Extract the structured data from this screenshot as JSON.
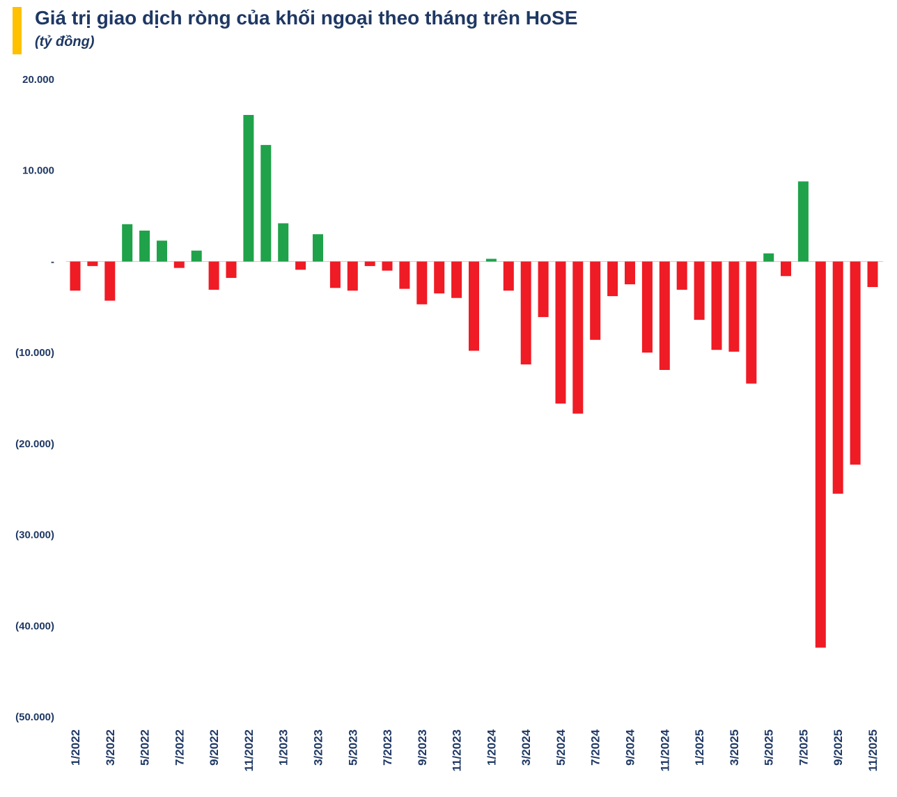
{
  "header": {
    "accent_color": "#FFC000",
    "title_color": "#1F3864"
  },
  "chart_data": {
    "type": "bar",
    "title": "Giá trị giao dịch ròng của khối ngoại theo tháng trên HoSE",
    "unit_label": "(tỷ đồng)",
    "categories": [
      "1/2022",
      "2/2022",
      "3/2022",
      "4/2022",
      "5/2022",
      "6/2022",
      "7/2022",
      "8/2022",
      "9/2022",
      "10/2022",
      "11/2022",
      "12/2022",
      "1/2023",
      "2/2023",
      "3/2023",
      "4/2023",
      "5/2023",
      "6/2023",
      "7/2023",
      "8/2023",
      "9/2023",
      "10/2023",
      "11/2023",
      "12/2023",
      "1/2024",
      "2/2024",
      "3/2024",
      "4/2024",
      "5/2024",
      "6/2024",
      "7/2024",
      "8/2024",
      "9/2024",
      "10/2024",
      "11/2024",
      "12/2024",
      "1/2025",
      "2/2025",
      "3/2025",
      "4/2025",
      "5/2025",
      "6/2025",
      "7/2025",
      "8/2025",
      "9/2025",
      "10/2025",
      "11/2025"
    ],
    "values": [
      -3200,
      -500,
      -4300,
      4100,
      3400,
      2300,
      -700,
      1200,
      -3100,
      -1800,
      16100,
      12800,
      4200,
      -900,
      3000,
      -2900,
      -3200,
      -500,
      -1000,
      -3000,
      -4700,
      -3500,
      -4000,
      -9800,
      300,
      -3200,
      -11300,
      -6100,
      -15600,
      -16700,
      -8600,
      -3800,
      -2500,
      -10000,
      -11900,
      -3100,
      -6400,
      -9700,
      -9900,
      -13400,
      900,
      -1600,
      8800,
      -42400,
      -25500,
      -22300,
      -2800
    ],
    "x_tick_step": 2,
    "y_ticks": [
      {
        "label": "20.000",
        "value": 20000
      },
      {
        "label": "10.000",
        "value": 10000
      },
      {
        "label": "-",
        "value": 0
      },
      {
        "label": "(10.000)",
        "value": -10000
      },
      {
        "label": "(20.000)",
        "value": -20000
      },
      {
        "label": "(30.000)",
        "value": -30000
      },
      {
        "label": "(40.000)",
        "value": -40000
      },
      {
        "label": "(50.000)",
        "value": -50000
      }
    ],
    "ylim": [
      -50000,
      20000
    ],
    "colors": {
      "positive": "#1FA24A",
      "negative": "#EF1B25"
    },
    "grid": false,
    "legend": false
  }
}
